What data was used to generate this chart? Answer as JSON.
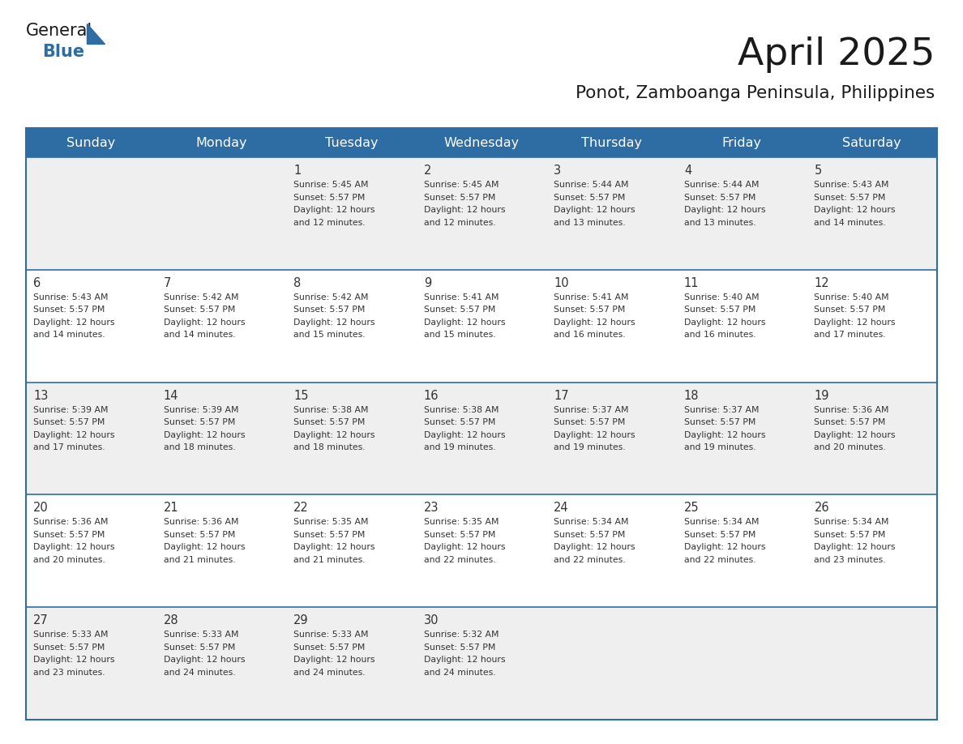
{
  "title": "April 2025",
  "subtitle": "Ponot, Zamboanga Peninsula, Philippines",
  "days_of_week": [
    "Sunday",
    "Monday",
    "Tuesday",
    "Wednesday",
    "Thursday",
    "Friday",
    "Saturday"
  ],
  "header_bg": "#2E6DA4",
  "header_text": "#FFFFFF",
  "row_bg_odd": "#EFEFEF",
  "row_bg_even": "#FFFFFF",
  "divider_color": "#2E6DA4",
  "outer_border_color": "#2E6DA4",
  "day_number_color": "#333333",
  "text_color": "#333333",
  "title_color": "#1a1a1a",
  "logo_general_color": "#1a1a1a",
  "logo_blue_color": "#2E6DA4",
  "weeks": [
    [
      {
        "day": null,
        "sunrise": null,
        "sunset": null,
        "daylight": null
      },
      {
        "day": null,
        "sunrise": null,
        "sunset": null,
        "daylight": null
      },
      {
        "day": 1,
        "sunrise": "5:45 AM",
        "sunset": "5:57 PM",
        "daylight": "12 hours and 12 minutes."
      },
      {
        "day": 2,
        "sunrise": "5:45 AM",
        "sunset": "5:57 PM",
        "daylight": "12 hours and 12 minutes."
      },
      {
        "day": 3,
        "sunrise": "5:44 AM",
        "sunset": "5:57 PM",
        "daylight": "12 hours and 13 minutes."
      },
      {
        "day": 4,
        "sunrise": "5:44 AM",
        "sunset": "5:57 PM",
        "daylight": "12 hours and 13 minutes."
      },
      {
        "day": 5,
        "sunrise": "5:43 AM",
        "sunset": "5:57 PM",
        "daylight": "12 hours and 14 minutes."
      }
    ],
    [
      {
        "day": 6,
        "sunrise": "5:43 AM",
        "sunset": "5:57 PM",
        "daylight": "12 hours and 14 minutes."
      },
      {
        "day": 7,
        "sunrise": "5:42 AM",
        "sunset": "5:57 PM",
        "daylight": "12 hours and 14 minutes."
      },
      {
        "day": 8,
        "sunrise": "5:42 AM",
        "sunset": "5:57 PM",
        "daylight": "12 hours and 15 minutes."
      },
      {
        "day": 9,
        "sunrise": "5:41 AM",
        "sunset": "5:57 PM",
        "daylight": "12 hours and 15 minutes."
      },
      {
        "day": 10,
        "sunrise": "5:41 AM",
        "sunset": "5:57 PM",
        "daylight": "12 hours and 16 minutes."
      },
      {
        "day": 11,
        "sunrise": "5:40 AM",
        "sunset": "5:57 PM",
        "daylight": "12 hours and 16 minutes."
      },
      {
        "day": 12,
        "sunrise": "5:40 AM",
        "sunset": "5:57 PM",
        "daylight": "12 hours and 17 minutes."
      }
    ],
    [
      {
        "day": 13,
        "sunrise": "5:39 AM",
        "sunset": "5:57 PM",
        "daylight": "12 hours and 17 minutes."
      },
      {
        "day": 14,
        "sunrise": "5:39 AM",
        "sunset": "5:57 PM",
        "daylight": "12 hours and 18 minutes."
      },
      {
        "day": 15,
        "sunrise": "5:38 AM",
        "sunset": "5:57 PM",
        "daylight": "12 hours and 18 minutes."
      },
      {
        "day": 16,
        "sunrise": "5:38 AM",
        "sunset": "5:57 PM",
        "daylight": "12 hours and 19 minutes."
      },
      {
        "day": 17,
        "sunrise": "5:37 AM",
        "sunset": "5:57 PM",
        "daylight": "12 hours and 19 minutes."
      },
      {
        "day": 18,
        "sunrise": "5:37 AM",
        "sunset": "5:57 PM",
        "daylight": "12 hours and 19 minutes."
      },
      {
        "day": 19,
        "sunrise": "5:36 AM",
        "sunset": "5:57 PM",
        "daylight": "12 hours and 20 minutes."
      }
    ],
    [
      {
        "day": 20,
        "sunrise": "5:36 AM",
        "sunset": "5:57 PM",
        "daylight": "12 hours and 20 minutes."
      },
      {
        "day": 21,
        "sunrise": "5:36 AM",
        "sunset": "5:57 PM",
        "daylight": "12 hours and 21 minutes."
      },
      {
        "day": 22,
        "sunrise": "5:35 AM",
        "sunset": "5:57 PM",
        "daylight": "12 hours and 21 minutes."
      },
      {
        "day": 23,
        "sunrise": "5:35 AM",
        "sunset": "5:57 PM",
        "daylight": "12 hours and 22 minutes."
      },
      {
        "day": 24,
        "sunrise": "5:34 AM",
        "sunset": "5:57 PM",
        "daylight": "12 hours and 22 minutes."
      },
      {
        "day": 25,
        "sunrise": "5:34 AM",
        "sunset": "5:57 PM",
        "daylight": "12 hours and 22 minutes."
      },
      {
        "day": 26,
        "sunrise": "5:34 AM",
        "sunset": "5:57 PM",
        "daylight": "12 hours and 23 minutes."
      }
    ],
    [
      {
        "day": 27,
        "sunrise": "5:33 AM",
        "sunset": "5:57 PM",
        "daylight": "12 hours and 23 minutes."
      },
      {
        "day": 28,
        "sunrise": "5:33 AM",
        "sunset": "5:57 PM",
        "daylight": "12 hours and 24 minutes."
      },
      {
        "day": 29,
        "sunrise": "5:33 AM",
        "sunset": "5:57 PM",
        "daylight": "12 hours and 24 minutes."
      },
      {
        "day": 30,
        "sunrise": "5:32 AM",
        "sunset": "5:57 PM",
        "daylight": "12 hours and 24 minutes."
      },
      {
        "day": null,
        "sunrise": null,
        "sunset": null,
        "daylight": null
      },
      {
        "day": null,
        "sunrise": null,
        "sunset": null,
        "daylight": null
      },
      {
        "day": null,
        "sunrise": null,
        "sunset": null,
        "daylight": null
      }
    ]
  ]
}
